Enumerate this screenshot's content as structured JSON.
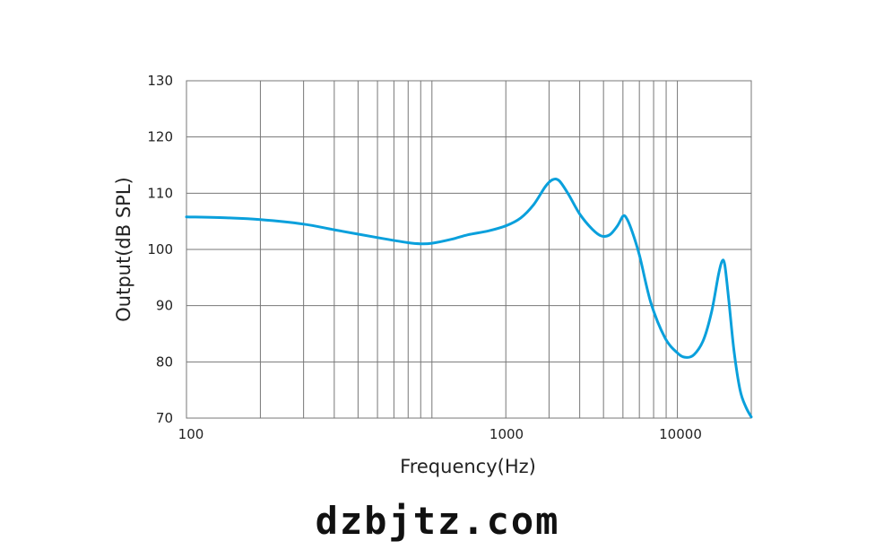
{
  "chart_data": {
    "type": "line",
    "title": "",
    "xlabel": "Frequency(Hz)",
    "ylabel": "Output(dB SPL)",
    "xscale": "log",
    "xlim": [
      100,
      20000
    ],
    "ylim": [
      70,
      130
    ],
    "grid": true,
    "x_tick_labels": [
      "100",
      "1000",
      "10000"
    ],
    "y_ticks": [
      70,
      80,
      90,
      100,
      110,
      120,
      130
    ],
    "line_color": "#0aa0dc",
    "series": [
      {
        "x": [
          100,
          150,
          200,
          300,
          400,
          600,
          800,
          900,
          1000,
          1200,
          1400,
          1700,
          2000,
          2300,
          2600,
          2900,
          3100,
          3300,
          3600,
          4000,
          4500,
          4900,
          5300,
          5700,
          6000,
          6200,
          6500,
          7000,
          7800,
          8900,
          10000,
          10800,
          11700,
          12800,
          13800,
          14700,
          15200,
          15600,
          16200,
          17000,
          18000,
          19000,
          20000
        ],
        "y": [
          105.8,
          105.6,
          105.3,
          104.5,
          103.5,
          102.1,
          101.2,
          101.0,
          101.1,
          101.8,
          102.6,
          103.3,
          104.2,
          105.6,
          108.0,
          111.2,
          112.4,
          112.2,
          109.8,
          106.3,
          103.6,
          102.4,
          102.6,
          104.2,
          105.9,
          105.6,
          103.5,
          99.0,
          90.5,
          84.3,
          81.6,
          80.8,
          81.3,
          84.0,
          89.0,
          95.5,
          97.9,
          97.2,
          91.0,
          82.0,
          75.0,
          72.0,
          70.2
        ]
      }
    ]
  },
  "watermark": "dzbjtz.com"
}
